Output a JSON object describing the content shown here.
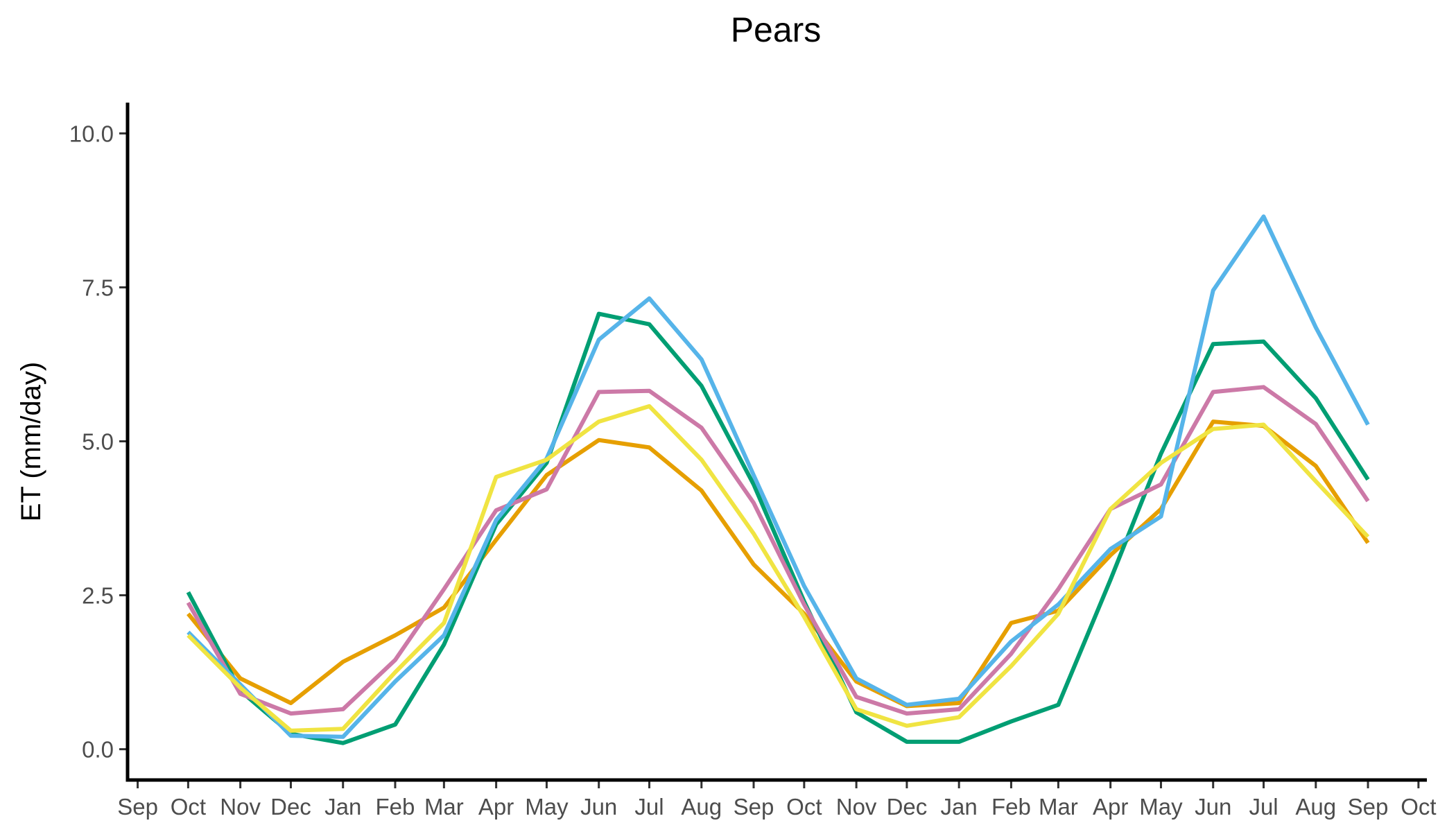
{
  "chart_data": {
    "type": "line",
    "title": "Pears",
    "xlabel": "",
    "ylabel": "ET (mm/day)",
    "x_tick_labels": [
      "Sep",
      "Oct",
      "Nov",
      "Dec",
      "Jan",
      "Feb",
      "Mar",
      "Apr",
      "May",
      "Jun",
      "Jul",
      "Aug",
      "Sep",
      "Oct",
      "Nov",
      "Dec",
      "Jan",
      "Feb",
      "Mar",
      "Apr",
      "May",
      "Jun",
      "Jul",
      "Aug",
      "Sep",
      "Oct"
    ],
    "x_tick_dates": [
      "2019-09-01",
      "2019-10-01",
      "2019-11-01",
      "2019-12-01",
      "2020-01-01",
      "2020-02-01",
      "2020-03-01",
      "2020-04-01",
      "2020-05-01",
      "2020-06-01",
      "2020-07-01",
      "2020-08-01",
      "2020-09-01",
      "2020-10-01",
      "2020-11-01",
      "2020-12-01",
      "2021-01-01",
      "2021-02-01",
      "2021-03-01",
      "2021-04-01",
      "2021-05-01",
      "2021-06-01",
      "2021-07-01",
      "2021-08-01",
      "2021-09-01",
      "2021-10-01"
    ],
    "y_ticks": [
      0.0,
      2.5,
      5.0,
      7.5,
      10.0
    ],
    "y_tick_labels": [
      "0.0",
      "2.5",
      "5.0",
      "7.5",
      "10.0"
    ],
    "ylim": [
      -0.5,
      10.5
    ],
    "xlim": [
      "2019-08-26",
      "2021-10-06"
    ],
    "grid": false,
    "legend": "none",
    "x": [
      "2019-10-01",
      "2019-11-01",
      "2019-12-01",
      "2020-01-01",
      "2020-02-01",
      "2020-03-01",
      "2020-04-01",
      "2020-05-01",
      "2020-06-01",
      "2020-07-01",
      "2020-08-01",
      "2020-09-01",
      "2020-10-01",
      "2020-11-01",
      "2020-12-01",
      "2021-01-01",
      "2021-02-01",
      "2021-03-01",
      "2021-04-01",
      "2021-05-01",
      "2021-06-01",
      "2021-07-01",
      "2021-08-01",
      "2021-09-01"
    ],
    "series": [
      {
        "color": "#E69F00",
        "values": [
          2.2,
          1.15,
          0.75,
          1.42,
          1.85,
          2.3,
          3.4,
          4.45,
          5.02,
          4.9,
          4.2,
          3.0,
          2.2,
          1.1,
          0.7,
          0.75,
          2.05,
          2.25,
          3.15,
          3.9,
          5.32,
          5.25,
          4.6,
          3.35
        ]
      },
      {
        "color": "#009E73",
        "values": [
          2.55,
          0.95,
          0.25,
          0.1,
          0.4,
          1.7,
          3.65,
          4.65,
          7.07,
          6.9,
          5.9,
          4.3,
          2.4,
          0.6,
          0.12,
          0.12,
          0.45,
          0.72,
          2.75,
          4.8,
          6.58,
          6.62,
          5.7,
          4.38
        ]
      },
      {
        "color": "#CC79A7",
        "values": [
          2.38,
          0.9,
          0.58,
          0.65,
          1.45,
          2.6,
          3.88,
          4.22,
          5.8,
          5.82,
          5.22,
          4.0,
          2.35,
          0.85,
          0.58,
          0.65,
          1.55,
          2.6,
          3.9,
          4.3,
          5.8,
          5.88,
          5.28,
          4.03
        ]
      },
      {
        "color": "#56B4E9",
        "values": [
          1.9,
          1.05,
          0.22,
          0.2,
          1.1,
          1.85,
          3.72,
          4.72,
          6.65,
          7.32,
          6.33,
          4.45,
          2.65,
          1.15,
          0.72,
          0.82,
          1.75,
          2.35,
          3.25,
          3.78,
          7.45,
          8.65,
          6.85,
          5.27
        ]
      },
      {
        "color": "#F0E442",
        "values": [
          1.85,
          1.0,
          0.3,
          0.33,
          1.25,
          2.05,
          4.42,
          4.7,
          5.32,
          5.57,
          4.7,
          3.5,
          2.15,
          0.65,
          0.38,
          0.52,
          1.35,
          2.2,
          3.9,
          4.65,
          5.2,
          5.27,
          4.35,
          3.45
        ]
      }
    ]
  }
}
